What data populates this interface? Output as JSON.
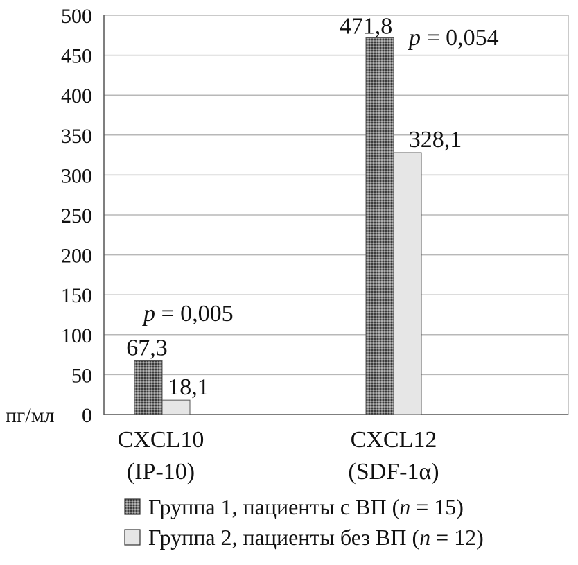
{
  "chart_data": {
    "type": "bar",
    "categories": [
      [
        "CXCL10",
        "(IP-10)"
      ],
      [
        "CXCL12",
        "(SDF-1α)"
      ]
    ],
    "series": [
      {
        "name": "Группа 1, пациенты с ВП",
        "n_label": "n",
        "n_value": "= 15)",
        "values": [
          67.3,
          471.8
        ],
        "labels": [
          "67,3",
          "471,8"
        ],
        "fill": "pattern-dots"
      },
      {
        "name": "Группа 2, пациенты без ВП",
        "n_label": "n",
        "n_value": "= 12)",
        "values": [
          18.1,
          328.1
        ],
        "labels": [
          "18,1",
          "328,1"
        ],
        "fill": "#e6e6e6"
      }
    ],
    "ylim": [
      0,
      500
    ],
    "yticks": [
      0,
      50,
      100,
      150,
      200,
      250,
      300,
      350,
      400,
      450,
      500
    ],
    "ylabel": "пг/мл",
    "grid": true,
    "annotations": [
      {
        "p_symbol": "p",
        "text": "= 0,005",
        "category_index": 0
      },
      {
        "p_symbol": "p",
        "text": "= 0,054",
        "category_index": 1
      }
    ],
    "legend_position": "bottom"
  },
  "colors": {
    "grid": "#b8b8b8",
    "axis": "#555555",
    "series1_base": "#6e6e6e",
    "series2": "#e6e6e6"
  }
}
